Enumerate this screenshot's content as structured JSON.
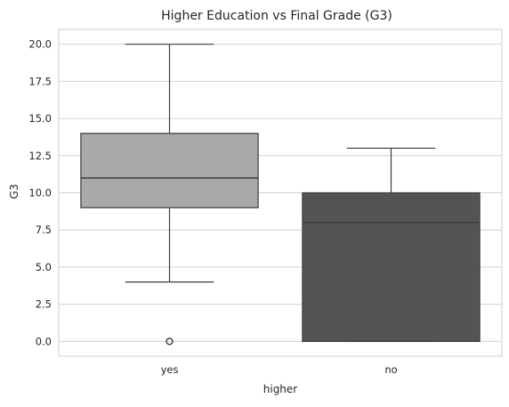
{
  "chart_data": {
    "type": "box",
    "title": "Higher Education vs Final Grade (G3)",
    "xlabel": "higher",
    "ylabel": "G3",
    "categories": [
      "yes",
      "no"
    ],
    "yticks": [
      "0.0",
      "2.5",
      "5.0",
      "7.5",
      "10.0",
      "12.5",
      "15.0",
      "17.5",
      "20.0"
    ],
    "ylim": [
      -1.0,
      21.0
    ],
    "grid": "horizontal",
    "boxes": [
      {
        "category": "yes",
        "whisker_low": 4.0,
        "q1": 9.0,
        "median": 11.0,
        "q3": 14.0,
        "whisker_high": 20.0,
        "outliers": [
          0.0
        ],
        "color": "#a9a9a9"
      },
      {
        "category": "no",
        "whisker_low": 0.0,
        "q1": 0.0,
        "median": 8.0,
        "q3": 10.0,
        "whisker_high": 13.0,
        "outliers": [],
        "color": "#545454"
      }
    ],
    "colors": {
      "grid": "#d0d0d0",
      "axis_spine": "#cccccc",
      "box_edge": "#3c3c3c",
      "text": "#262626"
    }
  }
}
